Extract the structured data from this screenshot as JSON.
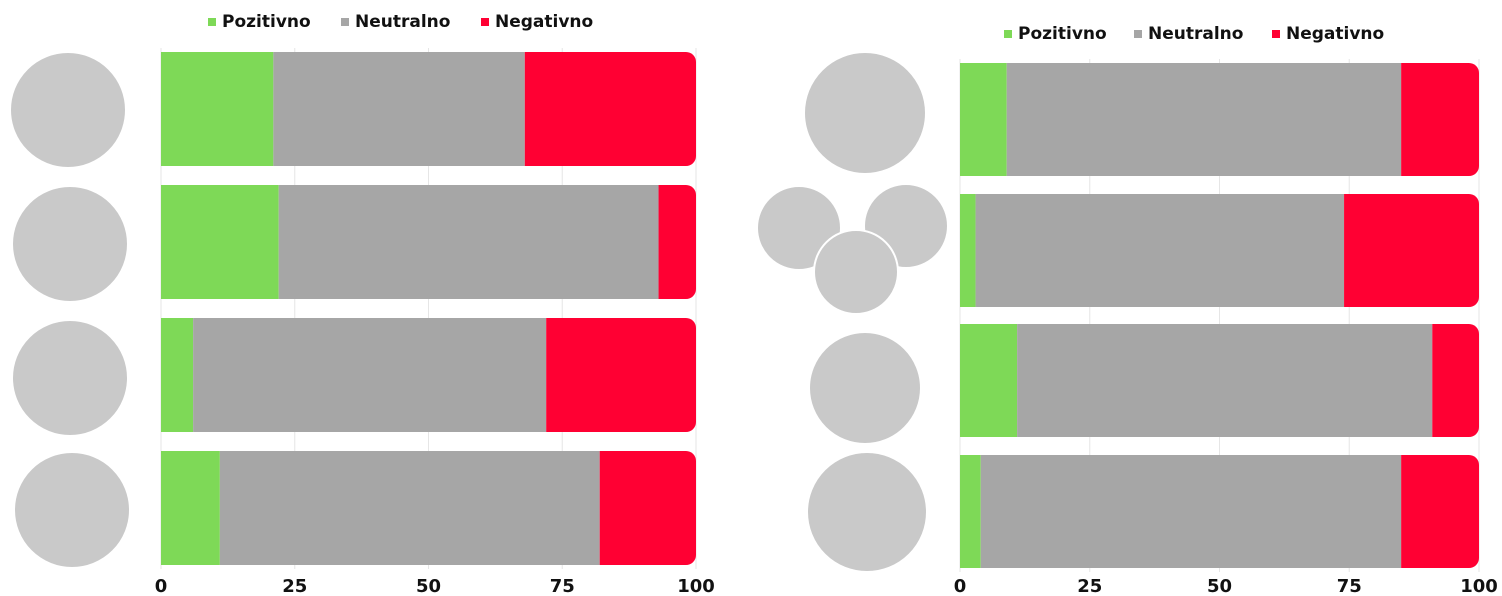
{
  "chart_data": [
    {
      "type": "bar",
      "orientation": "horizontal",
      "stacked": true,
      "categories": [
        null,
        null,
        null,
        null
      ],
      "series": [
        {
          "name": "Pozitivno",
          "color": "#7ed957",
          "values": [
            21,
            22,
            6,
            11
          ]
        },
        {
          "name": "Neutralno",
          "color": "#a6a6a6",
          "values": [
            47,
            71,
            66,
            71
          ]
        },
        {
          "name": "Negativno",
          "color": "#ff0033",
          "values": [
            32,
            7,
            28,
            18
          ]
        }
      ],
      "xlim": [
        0,
        100
      ],
      "xticks": [
        0,
        25,
        50,
        75,
        100
      ],
      "grid": true,
      "legend": "top"
    },
    {
      "type": "bar",
      "orientation": "horizontal",
      "stacked": true,
      "categories": [
        null,
        null,
        null,
        null
      ],
      "series": [
        {
          "name": "Pozitivno",
          "color": "#7ed957",
          "values": [
            9,
            3,
            11,
            4
          ]
        },
        {
          "name": "Neutralno",
          "color": "#a6a6a6",
          "values": [
            76,
            71,
            80,
            81
          ]
        },
        {
          "name": "Negativno",
          "color": "#ff0033",
          "values": [
            15,
            26,
            9,
            15
          ]
        }
      ],
      "xlim": [
        0,
        100
      ],
      "xticks": [
        0,
        25,
        50,
        75,
        100
      ],
      "grid": true,
      "legend": "top"
    }
  ]
}
